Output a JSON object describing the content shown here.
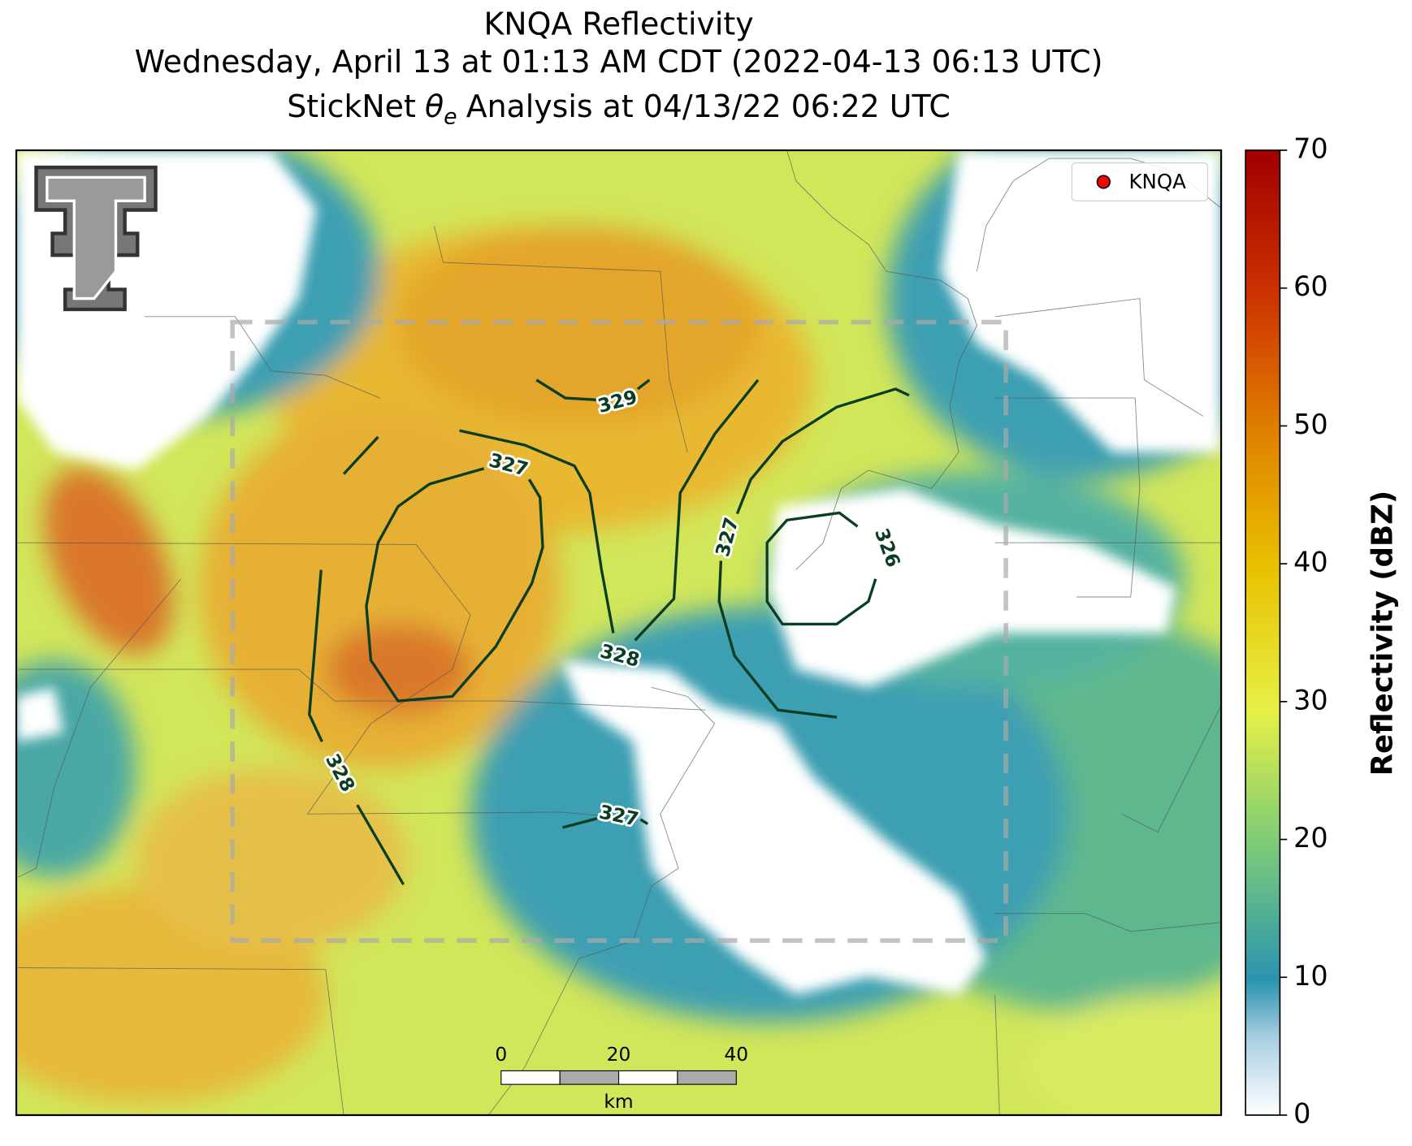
{
  "header": {
    "title": "KNQA Reflectivity",
    "subtitle": "Wednesday, April 13 at 01:13 AM CDT (2022-04-13 06:13 UTC)",
    "analysis": {
      "prefix": "StickNet",
      "symbol": "θ",
      "subscript": "e",
      "suffix": "Analysis at 04/13/22 06:22 UTC"
    }
  },
  "legend": {
    "label": "KNQA",
    "color": "#ff0000"
  },
  "colorbar": {
    "label": "Reflectivity (dBZ)",
    "ticks": [
      0,
      10,
      20,
      30,
      40,
      50,
      60,
      70
    ]
  },
  "scale_bar": {
    "ticks": [
      0,
      20,
      40
    ],
    "unit": "km"
  },
  "contours": {
    "color": "#0b3d22",
    "labels": [
      329,
      327,
      328,
      328,
      327,
      326,
      327
    ]
  }
}
